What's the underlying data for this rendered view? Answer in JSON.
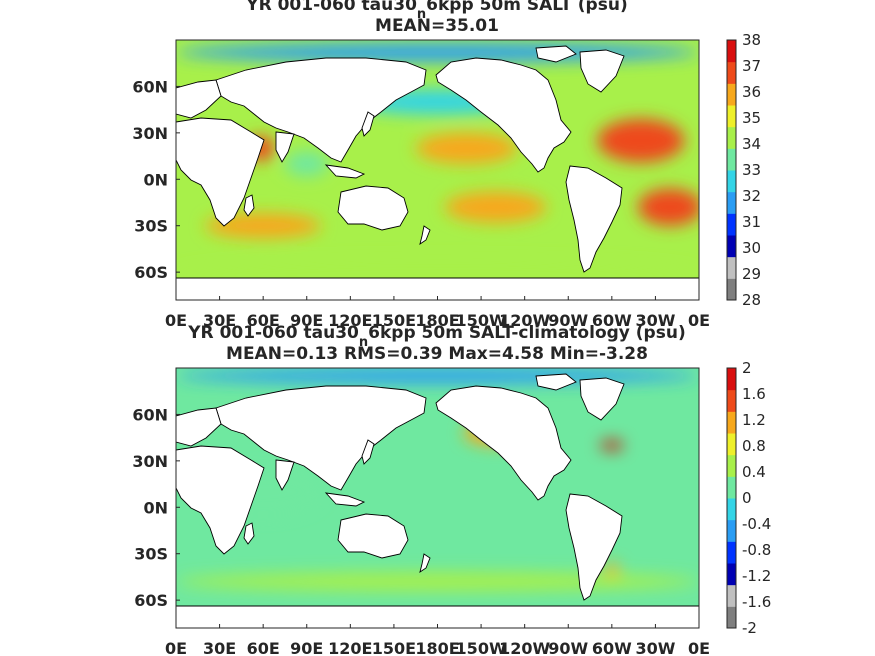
{
  "chart_data": [
    {
      "type": "heatmap",
      "title_line1": "YR 001-060 tau30",
      "title_line1_sub": "n",
      "title_line1_rest": "6kpp 50m SALT (psu)",
      "title_line2": "MEAN=35.01",
      "variable": "SALT (psu)",
      "xticks": [
        "0E",
        "30E",
        "60E",
        "90E",
        "120E",
        "150E",
        "180E",
        "150W",
        "120W",
        "90W",
        "60W",
        "30W",
        "0E"
      ],
      "yticks": [
        "60N",
        "30N",
        "0N",
        "30S",
        "60S"
      ],
      "ytick_values": [
        60,
        30,
        0,
        -30,
        -60
      ],
      "xlim": [
        0,
        360
      ],
      "ylim": [
        -78,
        90
      ],
      "colorbar_ticks": [
        "38",
        "37",
        "36",
        "35",
        "34",
        "33",
        "32",
        "31",
        "30",
        "29",
        "28"
      ],
      "colorbar_range": [
        28,
        38
      ],
      "colorbar_colors": [
        "#7f7f7f",
        "#c0c0c0",
        "#0000b3",
        "#0033ff",
        "#2a9df4",
        "#33d4e6",
        "#6fe8a0",
        "#a8f04a",
        "#eef02a",
        "#f7a81c",
        "#ee4a1a",
        "#d90f0f"
      ],
      "ocean_base": 34.5,
      "fields": [
        {
          "lon": 200,
          "lat": 20,
          "rlon": 35,
          "rlat": 10,
          "value": 35.6
        },
        {
          "lon": 220,
          "lat": -18,
          "rlon": 35,
          "rlat": 10,
          "value": 36.2
        },
        {
          "lon": 320,
          "lat": 25,
          "rlon": 30,
          "rlat": 14,
          "value": 37.0
        },
        {
          "lon": 340,
          "lat": -18,
          "rlon": 22,
          "rlat": 12,
          "value": 36.9
        },
        {
          "lon": 58,
          "lat": 20,
          "rlon": 10,
          "rlat": 8,
          "value": 36.6
        },
        {
          "lon": 60,
          "lat": -30,
          "rlon": 40,
          "rlat": 8,
          "value": 35.6
        },
        {
          "lon": 90,
          "lat": 10,
          "rlon": 15,
          "rlat": 8,
          "value": 33.5
        },
        {
          "lon": 180,
          "lat": -62,
          "rlon": 180,
          "rlat": 10,
          "value": 34.0
        },
        {
          "lon": 180,
          "lat": 50,
          "rlon": 60,
          "rlat": 8,
          "value": 32.8
        },
        {
          "lon": 180,
          "lat": 82,
          "rlon": 180,
          "rlat": 6,
          "value": 32.0
        }
      ]
    },
    {
      "type": "heatmap",
      "title_line1": "YR 001-060 tau30",
      "title_line1_sub": "n",
      "title_line1_rest": "6kpp 50m SALT-climatology (psu)",
      "title_line2": "MEAN=0.13   RMS=0.39   Max=4.58   Min=-3.28",
      "variable": "SALT-climatology (psu)",
      "xticks": [
        "0E",
        "30E",
        "60E",
        "90E",
        "120E",
        "150E",
        "180E",
        "150W",
        "120W",
        "90W",
        "60W",
        "30W",
        "0E"
      ],
      "yticks": [
        "60N",
        "30N",
        "0N",
        "30S",
        "60S"
      ],
      "ytick_values": [
        60,
        30,
        0,
        -30,
        -60
      ],
      "xlim": [
        0,
        360
      ],
      "ylim": [
        -78,
        90
      ],
      "colorbar_ticks": [
        "2",
        "1.6",
        "1.2",
        "0.8",
        "0.4",
        "0",
        "-0.4",
        "-0.8",
        "-1.2",
        "-1.6",
        "-2"
      ],
      "colorbar_range": [
        -2,
        2
      ],
      "colorbar_colors": [
        "#7f7f7f",
        "#c0c0c0",
        "#0000b3",
        "#0033ff",
        "#2a9df4",
        "#33d4e6",
        "#6fe8a0",
        "#a8f04a",
        "#eef02a",
        "#f7a81c",
        "#ee4a1a",
        "#d90f0f"
      ],
      "ocean_base": 0.1,
      "fields": [
        {
          "lon": 220,
          "lat": 48,
          "rlon": 22,
          "rlat": 8,
          "value": 1.2
        },
        {
          "lon": 300,
          "lat": 40,
          "rlon": 8,
          "rlat": 3,
          "value": 2.0
        },
        {
          "lon": 180,
          "lat": -48,
          "rlon": 180,
          "rlat": 6,
          "value": 0.5
        },
        {
          "lon": 180,
          "lat": 85,
          "rlon": 180,
          "rlat": 5,
          "value": -0.6
        },
        {
          "lon": 300,
          "lat": -40,
          "rlon": 5,
          "rlat": 4,
          "value": 1.0
        },
        {
          "lon": 60,
          "lat": 10,
          "rlon": 40,
          "rlat": 15,
          "value": 0.0
        }
      ]
    }
  ]
}
